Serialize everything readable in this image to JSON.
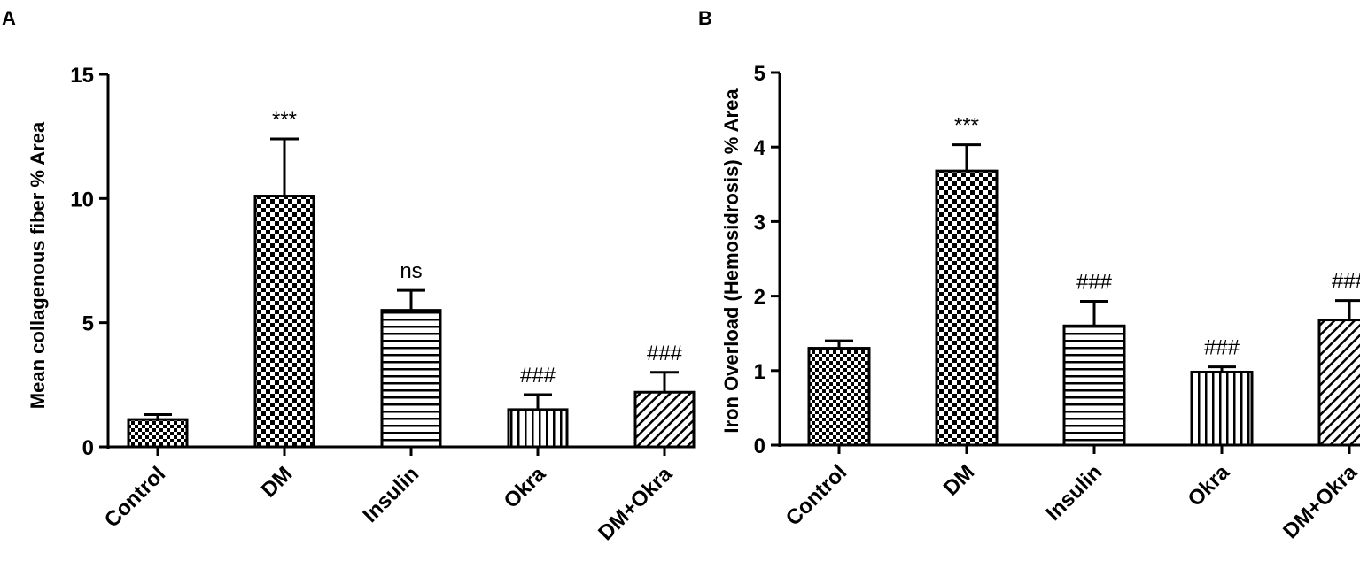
{
  "panels": {
    "a": {
      "letter": "A"
    },
    "b": {
      "letter": "B"
    }
  },
  "chart_data": [
    {
      "type": "bar",
      "panel": "A",
      "categories": [
        "Control",
        "DM",
        "Insulin",
        "Okra",
        "DM+Okra"
      ],
      "values": [
        1.1,
        10.1,
        5.5,
        1.5,
        2.2
      ],
      "errors": [
        0.2,
        2.3,
        0.8,
        0.6,
        0.8
      ],
      "annotations": [
        "",
        "***",
        "ns",
        "###",
        "###"
      ],
      "patterns": [
        "check-fine",
        "check-coarse",
        "horizontal",
        "vertical",
        "diagonal"
      ],
      "ylabel": "Mean collagenous fiber % Area",
      "xlabel": "",
      "ylim": [
        0,
        15
      ],
      "yticks": [
        0,
        5,
        10,
        15
      ],
      "ytick_labels": [
        "0",
        "5",
        "10",
        "15"
      ]
    },
    {
      "type": "bar",
      "panel": "B",
      "categories": [
        "Control",
        "DM",
        "Insulin",
        "Okra",
        "DM+Okra"
      ],
      "values": [
        1.3,
        3.68,
        1.6,
        0.98,
        1.68
      ],
      "errors": [
        0.1,
        0.35,
        0.33,
        0.07,
        0.26
      ],
      "annotations": [
        "",
        "***",
        "###",
        "###",
        "###"
      ],
      "patterns": [
        "check-fine",
        "check-coarse",
        "horizontal",
        "vertical",
        "diagonal"
      ],
      "ylabel": "Iron Overload (Hemosidrosis) % Area",
      "xlabel": "",
      "ylim": [
        0,
        5
      ],
      "yticks": [
        0,
        1,
        2,
        3,
        4,
        5
      ],
      "ytick_labels": [
        "0",
        "1",
        "2",
        "3",
        "4",
        "5"
      ]
    }
  ]
}
